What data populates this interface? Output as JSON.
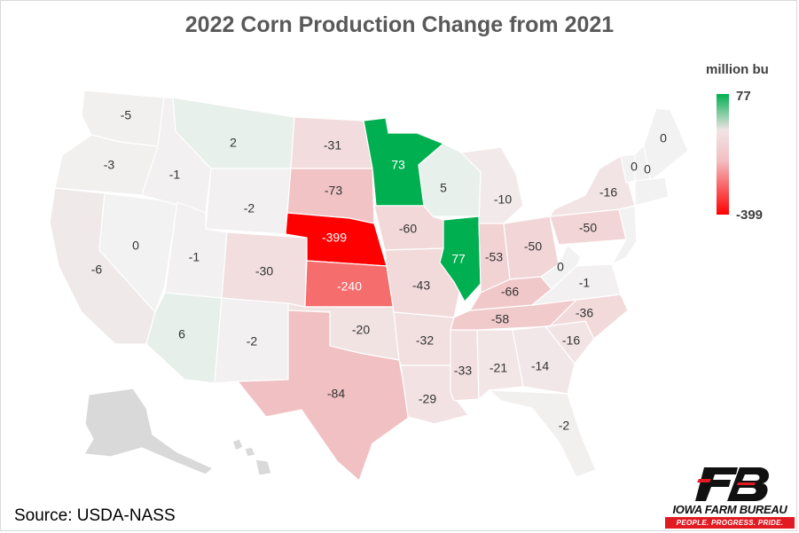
{
  "title": "2022 Corn Production Change from 2021",
  "legend": {
    "unit": "million bu",
    "max": "77",
    "min": "-399",
    "colors": [
      "#00b050",
      "#f2e4e6",
      "#ff0000"
    ]
  },
  "source": "Source: USDA-NASS",
  "logo": {
    "name": "IOWA FARM BUREAU",
    "tagline": "PEOPLE. PROGRESS. PRIDE.",
    "icon": "fb-logo-icon"
  },
  "states": {
    "WA": "-5",
    "OR": "-3",
    "ID": "-1",
    "MT": "2",
    "ND": "-31",
    "MN": "73",
    "WI": "5",
    "MI": "-10",
    "ME": "0",
    "VT": "0",
    "NH": "0",
    "NY": "-16",
    "PA": "-50",
    "OH": "-50",
    "IN": "-53",
    "IL": "77",
    "IA": "-60",
    "SD": "-73",
    "WY": "-2",
    "NE": "-399",
    "NV": "0",
    "UT": "-1",
    "CO": "-30",
    "KS": "-240",
    "MO": "-43",
    "KY": "-66",
    "WV": "0",
    "VA": "-1",
    "CA": "-6",
    "AZ": "6",
    "NM": "-2",
    "OK": "-20",
    "AR": "-32",
    "TN": "-58",
    "NC": "-36",
    "SC": "-16",
    "GA": "-14",
    "AL": "-21",
    "MS": "-33",
    "LA": "-29",
    "TX": "-84",
    "FL": "-2"
  }
}
